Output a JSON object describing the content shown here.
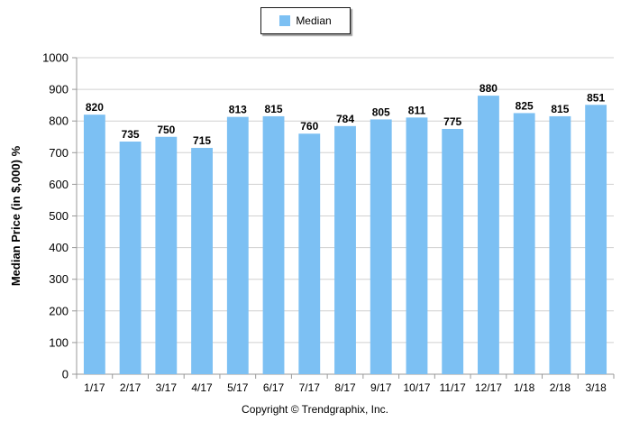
{
  "colors": {
    "bar": "#7cc0f3",
    "grid": "#d0d0d0",
    "axis": "#999999",
    "text": "#000000"
  },
  "legend": {
    "label": "Median"
  },
  "footer": {
    "copyright": "Copyright © Trendgraphix, Inc."
  },
  "chart_data": {
    "type": "bar",
    "title": "",
    "xlabel": "",
    "ylabel": "Median Price (in $,000) %",
    "ylim": [
      0,
      1000
    ],
    "yticks": [
      0,
      100,
      200,
      300,
      400,
      500,
      600,
      700,
      800,
      900,
      1000
    ],
    "grid": true,
    "legend_position": "top-center",
    "categories": [
      "1/17",
      "2/17",
      "3/17",
      "4/17",
      "5/17",
      "6/17",
      "7/17",
      "8/17",
      "9/17",
      "10/17",
      "11/17",
      "12/17",
      "1/18",
      "2/18",
      "3/18"
    ],
    "series": [
      {
        "name": "Median",
        "values": [
          820,
          735,
          750,
          715,
          813,
          815,
          760,
          784,
          805,
          811,
          775,
          880,
          825,
          815,
          851
        ]
      }
    ]
  }
}
